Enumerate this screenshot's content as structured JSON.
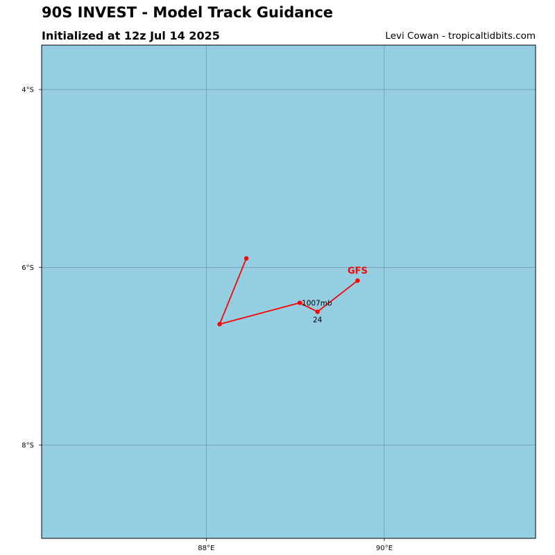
{
  "header": {
    "title": "90S INVEST - Model Track Guidance",
    "subtitle": "Initialized at 12z Jul 14 2025",
    "credit": "Levi Cowan - tropicaltidbits.com"
  },
  "map": {
    "ocean_color": "#95cde3",
    "grid_color": "#5f8d9e",
    "frame_color": "#000000",
    "lon_range": [
      86.15,
      91.7
    ],
    "lat_range": [
      -9.05,
      -3.5
    ],
    "lon_ticks": [
      {
        "value": 88,
        "label": "88°E"
      },
      {
        "value": 90,
        "label": "90°E"
      }
    ],
    "lat_ticks": [
      {
        "value": -4,
        "label": "4°S"
      },
      {
        "value": -6,
        "label": "6°S"
      },
      {
        "value": -8,
        "label": "8°S"
      }
    ]
  },
  "tracks": [
    {
      "model": "GFS",
      "color": "#ff0000",
      "points": [
        {
          "lon": 89.7,
          "lat": -6.15
        },
        {
          "lon": 89.25,
          "lat": -6.5,
          "label": "24"
        },
        {
          "lon": 89.05,
          "lat": -6.4,
          "label": "1007mb"
        },
        {
          "lon": 88.15,
          "lat": -6.64
        },
        {
          "lon": 88.45,
          "lat": -5.9
        }
      ]
    }
  ]
}
